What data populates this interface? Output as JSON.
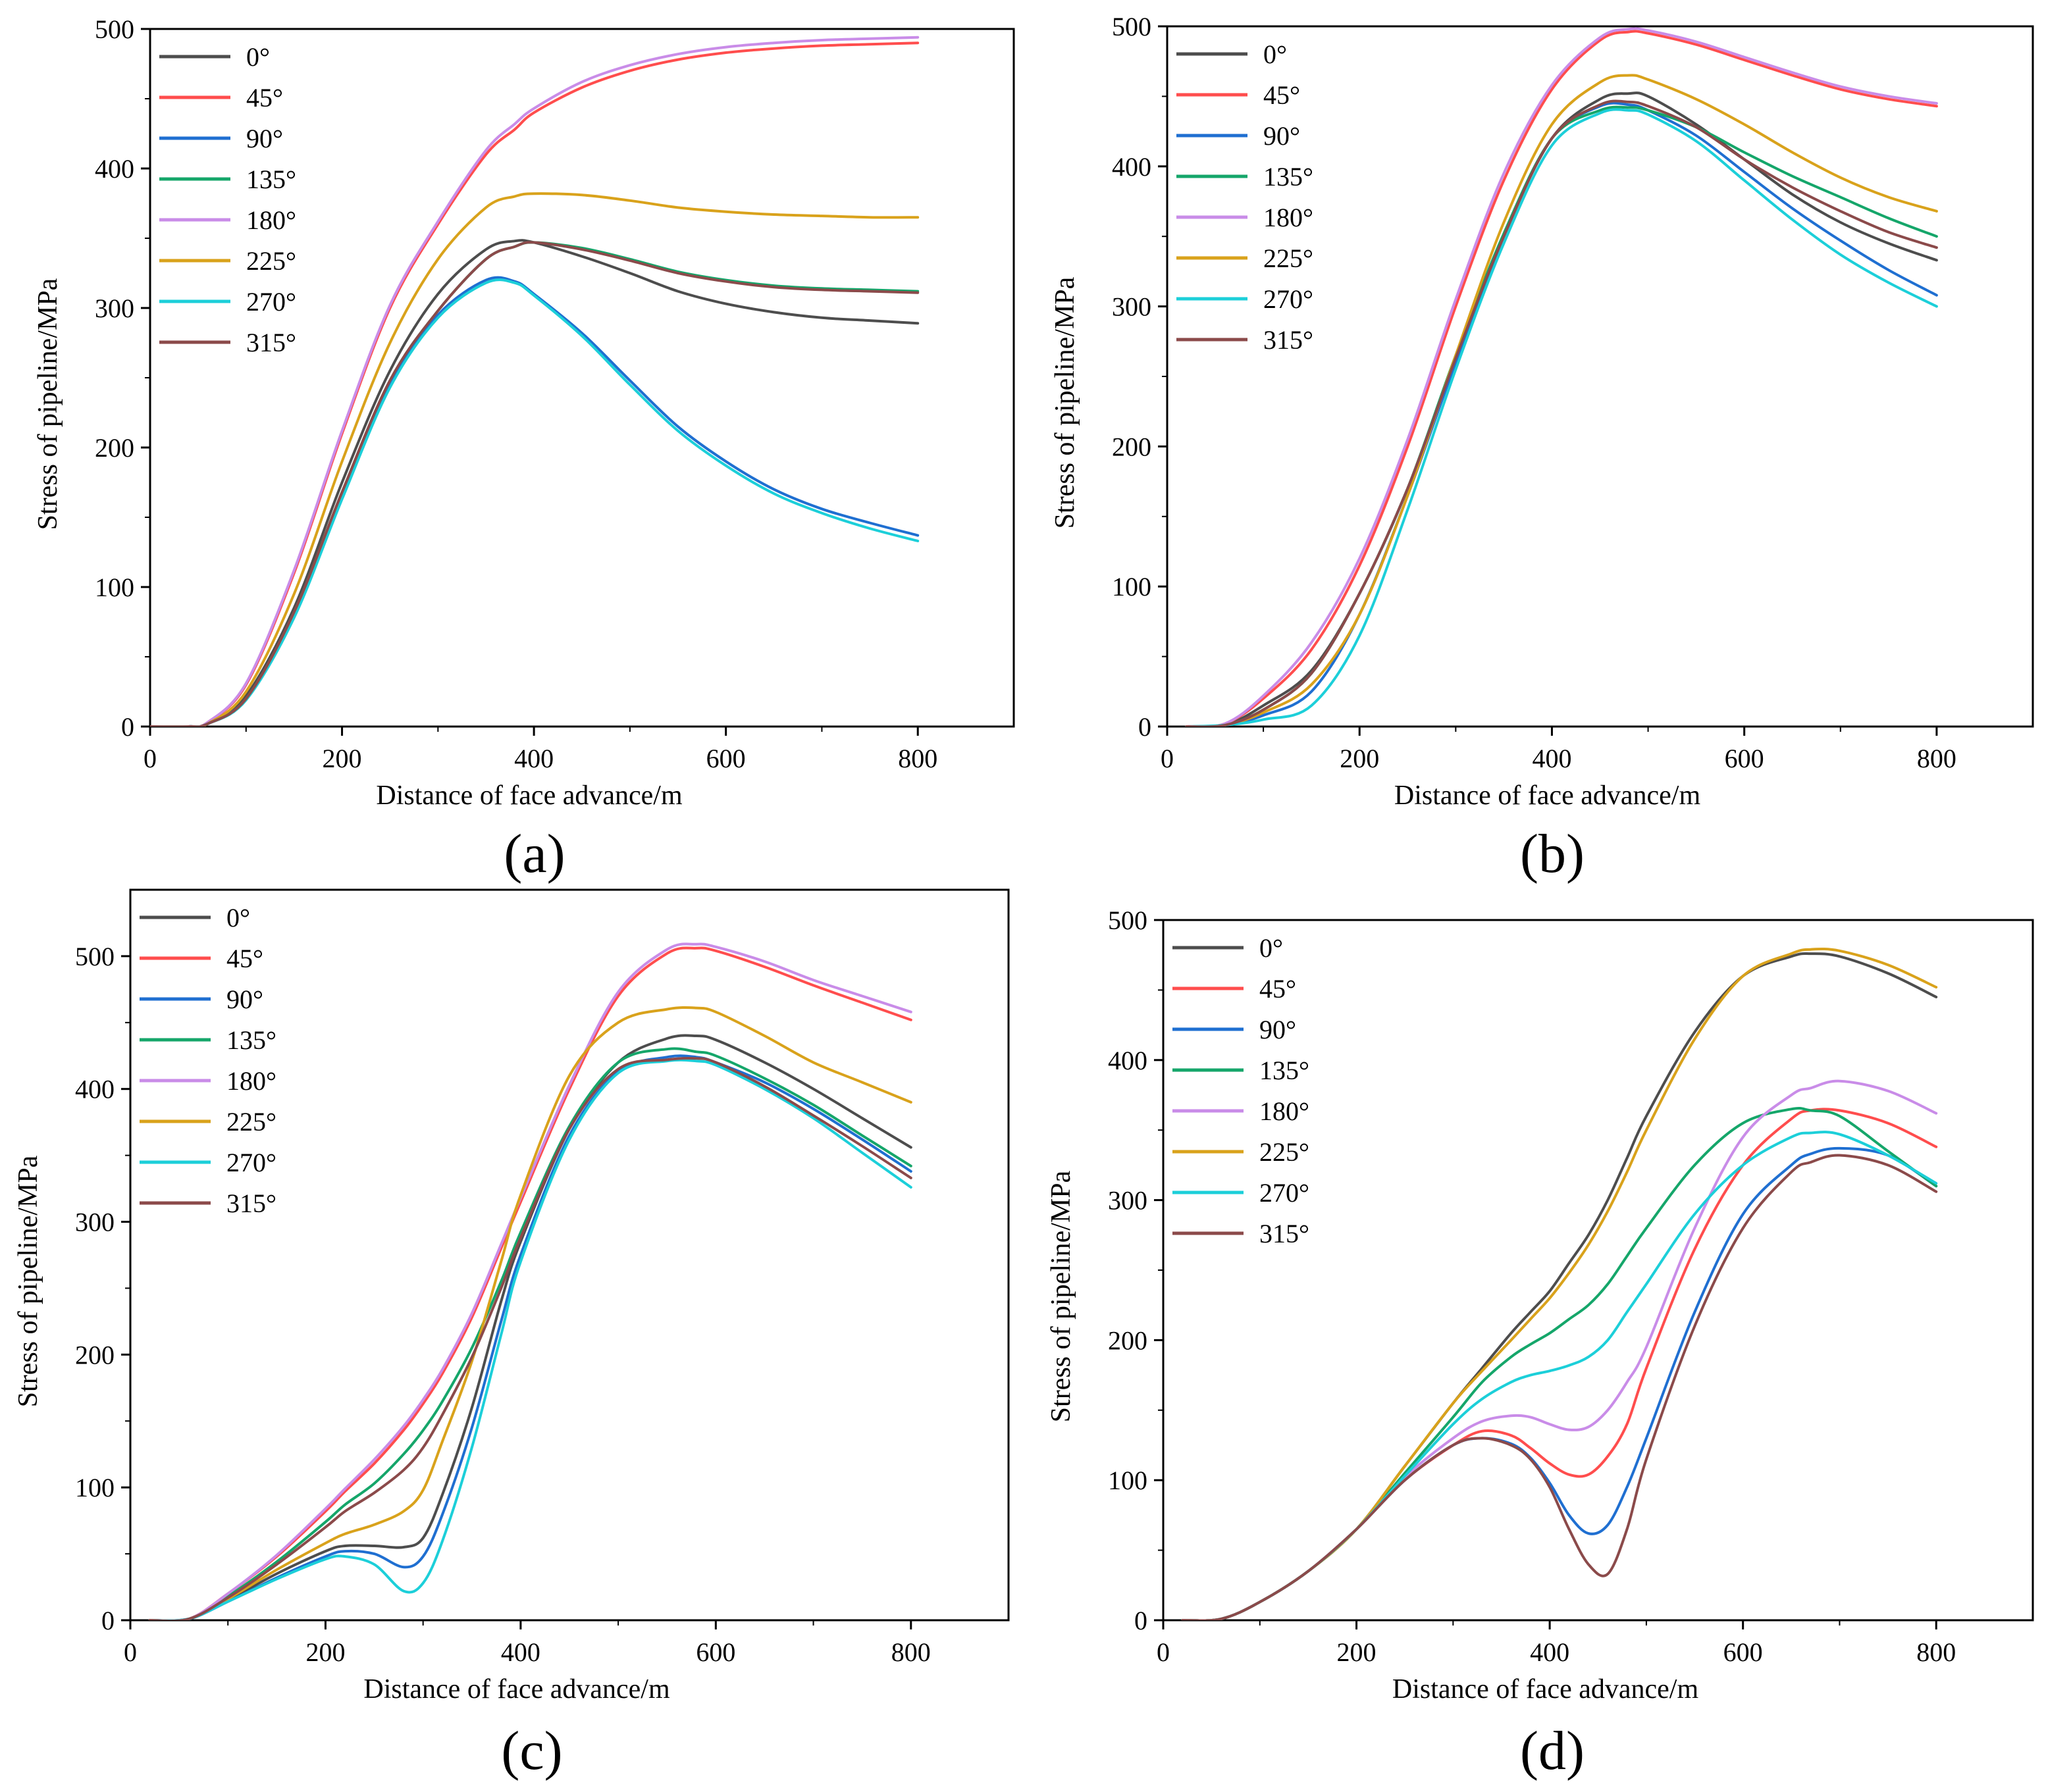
{
  "figure": {
    "colors": {
      "0°": "#4d4d4d",
      "45°": "#ff4d4d",
      "90°": "#1f6fd1",
      "135°": "#15a66a",
      "180°": "#c98ce8",
      "225°": "#d9a21b",
      "270°": "#1ccfd9",
      "315°": "#8b4a4a"
    }
  },
  "chart_data": [
    {
      "type": "line",
      "panel_label": "(a)",
      "xlabel": "Distance of face advance/m",
      "ylabel": "Stress of pipeline/MPa",
      "xlim": [
        0,
        900
      ],
      "ylim": [
        0,
        500
      ],
      "xticks": [
        "0",
        "200",
        "400",
        "600",
        "800"
      ],
      "yticks": [
        "0",
        "100",
        "200",
        "300",
        "400",
        "500"
      ],
      "legend_position": "top-left",
      "x": [
        0,
        40,
        60,
        100,
        150,
        200,
        250,
        300,
        350,
        380,
        400,
        450,
        500,
        550,
        600,
        650,
        700,
        750,
        800
      ],
      "series": [
        {
          "name": "0°",
          "values": [
            0,
            0,
            2,
            22,
            85,
            175,
            255,
            310,
            342,
            348,
            347,
            337,
            325,
            312,
            303,
            297,
            293,
            291,
            289
          ]
        },
        {
          "name": "45°",
          "values": [
            0,
            0,
            3,
            30,
            110,
            210,
            300,
            360,
            410,
            428,
            440,
            458,
            470,
            478,
            483,
            486,
            488,
            489,
            490
          ]
        },
        {
          "name": "90°",
          "values": [
            0,
            0,
            2,
            20,
            80,
            165,
            245,
            295,
            320,
            319,
            310,
            282,
            248,
            215,
            190,
            170,
            156,
            146,
            137
          ]
        },
        {
          "name": "135°",
          "values": [
            0,
            0,
            2,
            20,
            82,
            168,
            248,
            298,
            335,
            344,
            347,
            343,
            335,
            326,
            320,
            316,
            314,
            313,
            312
          ]
        },
        {
          "name": "180°",
          "values": [
            0,
            0,
            3,
            31,
            112,
            212,
            302,
            362,
            413,
            432,
            443,
            462,
            474,
            482,
            487,
            490,
            492,
            493,
            494
          ]
        },
        {
          "name": "225°",
          "values": [
            0,
            0,
            2,
            25,
            95,
            190,
            275,
            335,
            372,
            380,
            382,
            381,
            377,
            372,
            369,
            367,
            366,
            365,
            365
          ]
        },
        {
          "name": "270°",
          "values": [
            0,
            0,
            2,
            19,
            78,
            163,
            243,
            293,
            318,
            318,
            309,
            280,
            245,
            212,
            187,
            167,
            153,
            142,
            133
          ]
        },
        {
          "name": "315°",
          "values": [
            0,
            0,
            2,
            20,
            82,
            168,
            248,
            298,
            335,
            344,
            347,
            342,
            334,
            325,
            319,
            315,
            313,
            312,
            311
          ]
        }
      ]
    },
    {
      "type": "line",
      "panel_label": "(b)",
      "xlabel": "Distance of face advance/m",
      "ylabel": "Stress of pipeline/MPa",
      "xlim": [
        0,
        900
      ],
      "ylim": [
        0,
        500
      ],
      "xticks": [
        "0",
        "200",
        "400",
        "600",
        "800"
      ],
      "yticks": [
        "0",
        "100",
        "200",
        "300",
        "400",
        "500"
      ],
      "legend_position": "top-left",
      "x": [
        20,
        60,
        100,
        150,
        200,
        250,
        300,
        350,
        400,
        450,
        480,
        500,
        550,
        600,
        650,
        700,
        750,
        800
      ],
      "series": [
        {
          "name": "0°",
          "values": [
            0,
            1,
            15,
            40,
            95,
            170,
            260,
            350,
            420,
            448,
            452,
            450,
            430,
            405,
            380,
            360,
            345,
            333
          ]
        },
        {
          "name": "45°",
          "values": [
            0,
            2,
            20,
            55,
            115,
            200,
            300,
            390,
            455,
            490,
            496,
            495,
            487,
            476,
            465,
            455,
            448,
            443
          ]
        },
        {
          "name": "90°",
          "values": [
            0,
            1,
            8,
            25,
            80,
            165,
            260,
            350,
            420,
            443,
            444,
            440,
            422,
            396,
            370,
            347,
            326,
            308
          ]
        },
        {
          "name": "135°",
          "values": [
            0,
            1,
            12,
            38,
            95,
            170,
            265,
            352,
            420,
            440,
            442,
            440,
            428,
            410,
            393,
            378,
            363,
            350
          ]
        },
        {
          "name": "180°",
          "values": [
            0,
            2,
            22,
            60,
            120,
            205,
            305,
            395,
            458,
            492,
            498,
            497,
            489,
            478,
            467,
            457,
            450,
            445
          ]
        },
        {
          "name": "225°",
          "values": [
            0,
            1,
            10,
            30,
            80,
            165,
            265,
            360,
            430,
            460,
            465,
            462,
            448,
            430,
            410,
            392,
            378,
            368
          ]
        },
        {
          "name": "270°",
          "values": [
            0,
            1,
            5,
            15,
            65,
            155,
            255,
            345,
            415,
            438,
            440,
            437,
            418,
            390,
            362,
            337,
            317,
            300
          ]
        },
        {
          "name": "315°",
          "values": [
            0,
            1,
            12,
            38,
            95,
            170,
            263,
            350,
            420,
            444,
            446,
            443,
            428,
            405,
            385,
            368,
            353,
            342
          ]
        }
      ]
    },
    {
      "type": "line",
      "panel_label": "(c)",
      "xlabel": "Distance of face advance/m",
      "ylabel": "Stress of pipeline/MPa",
      "xlim": [
        0,
        900
      ],
      "ylim": [
        0,
        550
      ],
      "xticks": [
        "0",
        "200",
        "400",
        "600",
        "800"
      ],
      "yticks": [
        "0",
        "100",
        "200",
        "300",
        "400",
        "500"
      ],
      "legend_position": "top-left",
      "x": [
        20,
        60,
        100,
        150,
        200,
        220,
        250,
        280,
        300,
        320,
        350,
        380,
        400,
        450,
        500,
        550,
        580,
        600,
        650,
        700,
        750,
        800
      ],
      "series": [
        {
          "name": "0°",
          "values": [
            0,
            1,
            15,
            35,
            52,
            56,
            56,
            55,
            62,
            95,
            160,
            240,
            285,
            370,
            420,
            438,
            440,
            437,
            420,
            400,
            378,
            356
          ]
        },
        {
          "name": "45°",
          "values": [
            0,
            1,
            20,
            48,
            82,
            97,
            118,
            143,
            163,
            186,
            228,
            280,
            315,
            400,
            470,
            502,
            506,
            504,
            492,
            478,
            465,
            452
          ]
        },
        {
          "name": "90°",
          "values": [
            0,
            1,
            14,
            32,
            48,
            52,
            50,
            40,
            48,
            80,
            145,
            225,
            275,
            365,
            413,
            424,
            424,
            420,
            405,
            385,
            362,
            338
          ]
        },
        {
          "name": "135°",
          "values": [
            0,
            1,
            18,
            44,
            74,
            87,
            103,
            125,
            143,
            165,
            205,
            255,
            292,
            372,
            420,
            430,
            428,
            425,
            408,
            388,
            365,
            342
          ]
        },
        {
          "name": "180°",
          "values": [
            0,
            1,
            20,
            49,
            84,
            99,
            121,
            146,
            166,
            189,
            231,
            283,
            318,
            403,
            473,
            505,
            509,
            507,
            496,
            482,
            470,
            458
          ]
        },
        {
          "name": "225°",
          "values": [
            0,
            1,
            16,
            38,
            58,
            65,
            72,
            82,
            98,
            135,
            195,
            270,
            320,
            410,
            450,
            460,
            461,
            458,
            440,
            420,
            405,
            390
          ]
        },
        {
          "name": "270°",
          "values": [
            0,
            1,
            14,
            31,
            46,
            48,
            42,
            22,
            28,
            60,
            130,
            215,
            270,
            362,
            412,
            421,
            421,
            418,
            400,
            378,
            352,
            326
          ]
        },
        {
          "name": "315°",
          "values": [
            0,
            1,
            17,
            42,
            70,
            82,
            96,
            113,
            130,
            155,
            198,
            250,
            288,
            370,
            415,
            422,
            423,
            420,
            402,
            380,
            357,
            333
          ]
        }
      ]
    },
    {
      "type": "line",
      "panel_label": "(d)",
      "xlabel": "Distance of face advance/m",
      "ylabel": "Stress of pipeline/MPa",
      "xlim": [
        0,
        900
      ],
      "ylim": [
        0,
        500
      ],
      "xticks": [
        "0",
        "200",
        "400",
        "600",
        "800"
      ],
      "yticks": [
        "0",
        "100",
        "200",
        "300",
        "400",
        "500"
      ],
      "legend_position": "top-left",
      "x": [
        20,
        60,
        100,
        150,
        200,
        250,
        300,
        330,
        360,
        380,
        400,
        420,
        440,
        460,
        480,
        500,
        550,
        600,
        650,
        670,
        700,
        750,
        800
      ],
      "series": [
        {
          "name": "0°",
          "values": [
            0,
            1,
            13,
            35,
            65,
            110,
            155,
            180,
            205,
            220,
            235,
            255,
            275,
            300,
            330,
            360,
            420,
            460,
            474,
            476,
            474,
            462,
            445
          ]
        },
        {
          "name": "45°",
          "values": [
            0,
            1,
            13,
            35,
            65,
            100,
            125,
            135,
            132,
            123,
            112,
            104,
            104,
            117,
            140,
            180,
            265,
            325,
            358,
            364,
            364,
            355,
            338
          ]
        },
        {
          "name": "90°",
          "values": [
            0,
            1,
            13,
            35,
            65,
            100,
            125,
            130,
            126,
            116,
            98,
            75,
            62,
            68,
            95,
            130,
            220,
            290,
            325,
            333,
            337,
            332,
            310
          ]
        },
        {
          "name": "135°",
          "values": [
            0,
            1,
            13,
            35,
            65,
            105,
            145,
            170,
            188,
            197,
            205,
            215,
            225,
            240,
            260,
            280,
            325,
            355,
            365,
            364,
            360,
            335,
            310
          ]
        },
        {
          "name": "180°",
          "values": [
            0,
            1,
            13,
            35,
            65,
            102,
            130,
            142,
            146,
            145,
            140,
            136,
            138,
            150,
            170,
            195,
            280,
            345,
            375,
            380,
            385,
            378,
            362
          ]
        },
        {
          "name": "225°",
          "values": [
            0,
            1,
            13,
            35,
            65,
            110,
            155,
            178,
            200,
            215,
            230,
            248,
            268,
            292,
            320,
            350,
            415,
            460,
            476,
            479,
            478,
            468,
            452
          ]
        },
        {
          "name": "270°",
          "values": [
            0,
            1,
            13,
            35,
            65,
            103,
            140,
            158,
            170,
            175,
            178,
            182,
            188,
            200,
            220,
            240,
            290,
            325,
            345,
            348,
            347,
            332,
            312
          ]
        },
        {
          "name": "315°",
          "values": [
            0,
            1,
            13,
            35,
            65,
            100,
            125,
            130,
            125,
            115,
            95,
            65,
            40,
            33,
            65,
            115,
            210,
            280,
            320,
            327,
            332,
            325,
            306
          ]
        }
      ]
    }
  ]
}
